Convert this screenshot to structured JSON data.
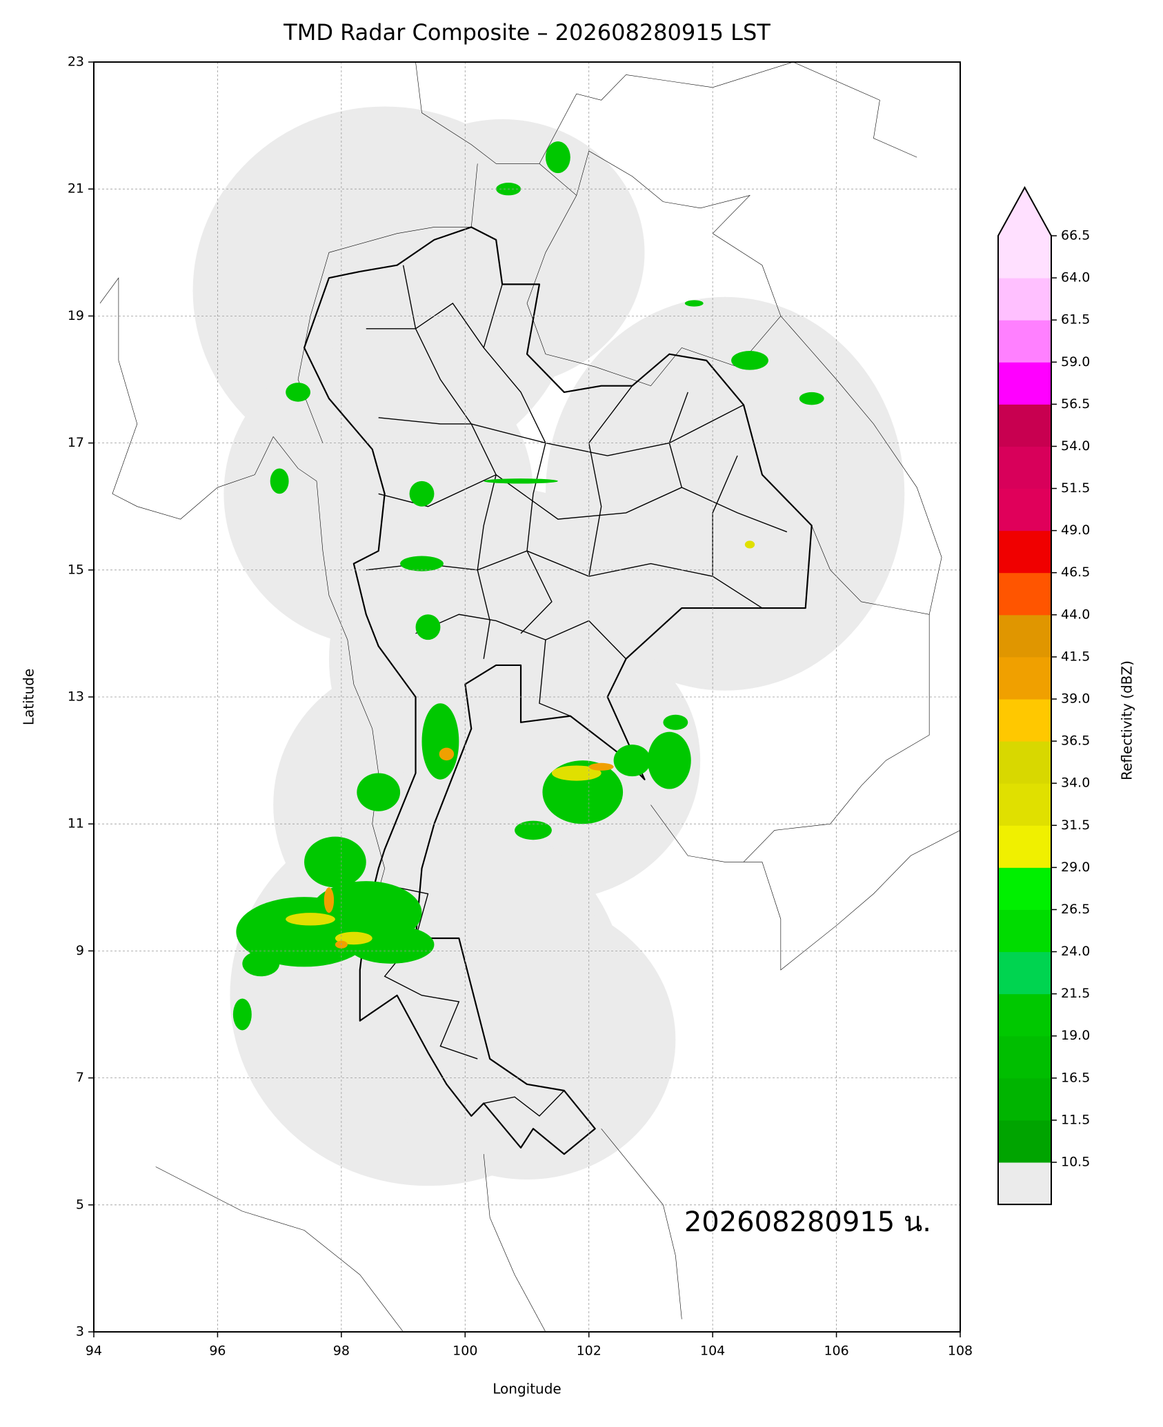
{
  "chart_data": {
    "type": "map",
    "title": "TMD Radar Composite – 202608280915 LST",
    "x_label": "Longitude",
    "y_label": "Latitude",
    "xlim": [
      94,
      108
    ],
    "xticks": [
      94,
      96,
      98,
      100,
      102,
      104,
      106,
      108
    ],
    "ylim": [
      3,
      23
    ],
    "yticks": [
      3,
      5,
      7,
      9,
      11,
      13,
      15,
      17,
      19,
      21,
      23
    ],
    "grid": true,
    "annotation": "202608280915 น.",
    "colorbar": {
      "label": "Reflectivity (dBZ)",
      "ticks": [
        10.5,
        11.5,
        16.5,
        {
          "value": 19,
          "label": "19.0"
        },
        21.5,
        {
          "value": 24,
          "label": "24.0"
        },
        26.5,
        {
          "value": 29,
          "label": "29.0"
        },
        31.5,
        {
          "value": 34,
          "label": "34.0"
        },
        36.5,
        {
          "value": 39,
          "label": "39.0"
        },
        41.5,
        {
          "value": 44,
          "label": "44.0"
        },
        46.5,
        {
          "value": 49,
          "label": "49.0"
        },
        51.5,
        {
          "value": 54,
          "label": "54.0"
        },
        56.5,
        {
          "value": 59,
          "label": "59.0"
        },
        61.5,
        {
          "value": 64,
          "label": "64.0"
        },
        66.5
      ],
      "colors": [
        "#00a400",
        "#00b400",
        "#00be00",
        "#00c800",
        "#00d450",
        "#00dc00",
        "#00f000",
        "#f0f000",
        "#e0e000",
        "#d8d800",
        "#ffc800",
        "#f0a000",
        "#e09600",
        "#ff5500",
        "#f00000",
        "#e0005a",
        "#d8005a",
        "#c80050",
        "#ff00ff",
        "#ff80ff",
        "#ffc0ff",
        "#ffe0ff"
      ],
      "under_color": "#ebebeb",
      "over_color": "#ffe0ff"
    }
  }
}
